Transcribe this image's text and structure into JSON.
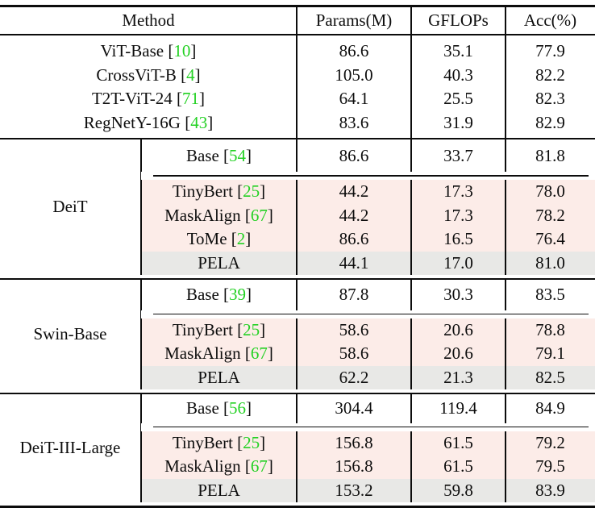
{
  "table": {
    "colors": {
      "citation_green": "#23d123",
      "row_pink": "#fcece8",
      "row_gray": "#e8e8e6",
      "rule_black": "#0c0c0c"
    },
    "header": {
      "method": "Method",
      "params": "Params(M)",
      "gflops": "GFLOPs",
      "acc": "Acc(%)"
    },
    "baselines": [
      {
        "method": "ViT-Base",
        "cite": "10",
        "params": "86.6",
        "gflops": "35.1",
        "acc": "77.9"
      },
      {
        "method": "CrossViT-B",
        "cite": "4",
        "params": "105.0",
        "gflops": "40.3",
        "acc": "82.2"
      },
      {
        "method": "T2T-ViT-24",
        "cite": "71",
        "params": "64.1",
        "gflops": "25.5",
        "acc": "82.3"
      },
      {
        "method": "RegNetY-16G",
        "cite": "43",
        "params": "83.6",
        "gflops": "31.9",
        "acc": "82.9"
      }
    ],
    "groups": [
      {
        "name": "DeiT",
        "rows": [
          {
            "method": "Base",
            "cite": "54",
            "params": "86.6",
            "gflops": "33.7",
            "acc": "81.8",
            "kind": "base"
          },
          {
            "method": "TinyBert",
            "cite": "25",
            "params": "44.2",
            "gflops": "17.3",
            "acc": "78.0",
            "kind": "compressed"
          },
          {
            "method": "MaskAlign",
            "cite": "67",
            "params": "44.2",
            "gflops": "17.3",
            "acc": "78.2",
            "kind": "compressed"
          },
          {
            "method": "ToMe",
            "cite": "2",
            "params": "86.6",
            "gflops": "16.5",
            "acc": "76.4",
            "kind": "compressed"
          },
          {
            "method": "PELA",
            "cite": null,
            "params": "44.1",
            "gflops": "17.0",
            "acc": "81.0",
            "kind": "ours"
          }
        ]
      },
      {
        "name": "Swin-Base",
        "rows": [
          {
            "method": "Base",
            "cite": "39",
            "params": "87.8",
            "gflops": "30.3",
            "acc": "83.5",
            "kind": "base"
          },
          {
            "method": "TinyBert",
            "cite": "25",
            "params": "58.6",
            "gflops": "20.6",
            "acc": "78.8",
            "kind": "compressed"
          },
          {
            "method": "MaskAlign",
            "cite": "67",
            "params": "58.6",
            "gflops": "20.6",
            "acc": "79.1",
            "kind": "compressed"
          },
          {
            "method": "PELA",
            "cite": null,
            "params": "62.2",
            "gflops": "21.3",
            "acc": "82.5",
            "kind": "ours"
          }
        ]
      },
      {
        "name": "DeiT-III-Large",
        "rows": [
          {
            "method": "Base",
            "cite": "56",
            "params": "304.4",
            "gflops": "119.4",
            "acc": "84.9",
            "kind": "base"
          },
          {
            "method": "TinyBert",
            "cite": "25",
            "params": "156.8",
            "gflops": "61.5",
            "acc": "79.2",
            "kind": "compressed"
          },
          {
            "method": "MaskAlign",
            "cite": "67",
            "params": "156.8",
            "gflops": "61.5",
            "acc": "79.5",
            "kind": "compressed"
          },
          {
            "method": "PELA",
            "cite": null,
            "params": "153.2",
            "gflops": "59.8",
            "acc": "83.9",
            "kind": "ours"
          }
        ]
      }
    ]
  }
}
